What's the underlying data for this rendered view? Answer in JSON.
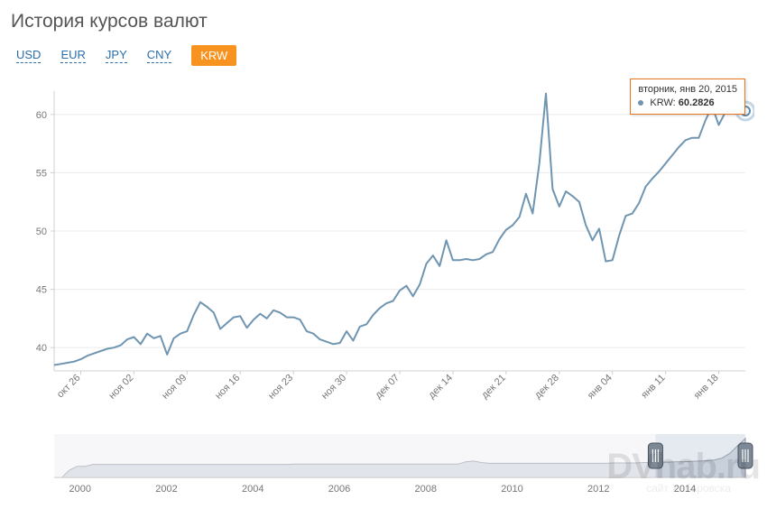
{
  "page_title": "История курсов валют",
  "tabs": [
    {
      "label": "USD",
      "active": false
    },
    {
      "label": "EUR",
      "active": false
    },
    {
      "label": "JPY",
      "active": false
    },
    {
      "label": "CNY",
      "active": false
    },
    {
      "label": "KRW",
      "active": true
    }
  ],
  "chart": {
    "type": "line",
    "series_name": "KRW",
    "line_color": "#6f95b1",
    "line_width": 2,
    "background_color": "#ffffff",
    "grid_color": "#ececec",
    "axis_color": "#d0d0d0",
    "tick_label_color": "#777777",
    "tick_fontsize": 11,
    "ylim": [
      38,
      62
    ],
    "yticks": [
      40,
      45,
      50,
      55,
      60
    ],
    "xticks": [
      "окт 26",
      "ноя 02",
      "ноя 09",
      "ноя 16",
      "ноя 23",
      "ноя 30",
      "дек 07",
      "дек 14",
      "дек 21",
      "дек 28",
      "янв 04",
      "янв 11",
      "янв 18"
    ],
    "xtick_rotation": -45,
    "data": [
      38.5,
      38.6,
      38.7,
      38.8,
      39.0,
      39.3,
      39.5,
      39.7,
      39.9,
      40.0,
      40.2,
      40.7,
      40.9,
      40.3,
      41.2,
      40.8,
      41.0,
      39.4,
      40.8,
      41.2,
      41.4,
      42.8,
      43.9,
      43.5,
      43.0,
      41.6,
      42.1,
      42.6,
      42.7,
      41.7,
      42.4,
      42.9,
      42.5,
      43.2,
      43.0,
      42.6,
      42.6,
      42.4,
      41.4,
      41.2,
      40.7,
      40.5,
      40.3,
      40.4,
      41.4,
      40.6,
      41.8,
      42.0,
      42.8,
      43.4,
      43.8,
      44.0,
      44.9,
      45.3,
      44.4,
      45.4,
      47.2,
      47.9,
      47.0,
      49.2,
      47.5,
      47.5,
      47.6,
      47.5,
      47.6,
      48.0,
      48.2,
      49.3,
      50.1,
      50.5,
      51.2,
      53.2,
      51.5,
      55.8,
      61.8,
      53.6,
      52.1,
      53.4,
      53.0,
      52.5,
      50.5,
      49.2,
      50.2,
      47.4,
      47.5,
      49.6,
      51.3,
      51.5,
      52.4,
      53.8,
      54.5,
      55.1,
      55.8,
      56.5,
      57.2,
      57.8,
      58.0,
      58.0,
      59.5,
      60.7,
      59.1,
      60.2,
      60.3,
      60.3,
      60.3
    ],
    "highlight": {
      "index": 104,
      "outer_color": "#a9c4db",
      "inner_color": "#5f8bad",
      "inner_fill": "#ffffff"
    }
  },
  "tooltip": {
    "date_label": "вторник, янв 20, 2015",
    "series_label": "KRW:",
    "value": "60.2826",
    "marker_color": "#6f95b1"
  },
  "navigator": {
    "type": "range-selector",
    "fill_color": "#d3d8df",
    "line_color": "#8a8f98",
    "mask_color": "rgba(180,196,215,0.35)",
    "handle_fill": "#7c8896",
    "handle_stroke": "#4a5460",
    "band_start": 0.87,
    "band_end": 1.0,
    "xticks": [
      "2000",
      "2002",
      "2004",
      "2006",
      "2008",
      "2010",
      "2012",
      "2014"
    ],
    "data": [
      2,
      2,
      4,
      5,
      5,
      5.5,
      5.5,
      5.5,
      5.5,
      5.5,
      5.5,
      5.5,
      5.5,
      5.5,
      5.5,
      5.5,
      5.5,
      5.5,
      5.5,
      5.5,
      5.5,
      5.5,
      5.5,
      5.5,
      5.5,
      5.5,
      5.5,
      5.5,
      5.5,
      5.5,
      5.5,
      5.6,
      5.6,
      5.6,
      5.6,
      5.6,
      5.6,
      5.6,
      5.6,
      5.6,
      5.6,
      5.6,
      5.6,
      5.6,
      5.6,
      5.6,
      5.6,
      5.6,
      5.6,
      5.6,
      5.6,
      5.6,
      5.6,
      6.2,
      6.4,
      6.0,
      5.8,
      5.8,
      5.8,
      5.8,
      5.8,
      5.8,
      5.8,
      5.8,
      5.8,
      5.8,
      5.8,
      5.8,
      5.8,
      5.8,
      5.8,
      5.8,
      5.9,
      5.9,
      5.9,
      5.9,
      6.0,
      6.0,
      6.1,
      6.1,
      6.2,
      6.2,
      6.3,
      6.4,
      6.5,
      6.7,
      7.2,
      8.5,
      10.5,
      12.5
    ]
  },
  "watermark": {
    "main": "DVhab.ru",
    "sub": "сайт Хабаровска"
  }
}
